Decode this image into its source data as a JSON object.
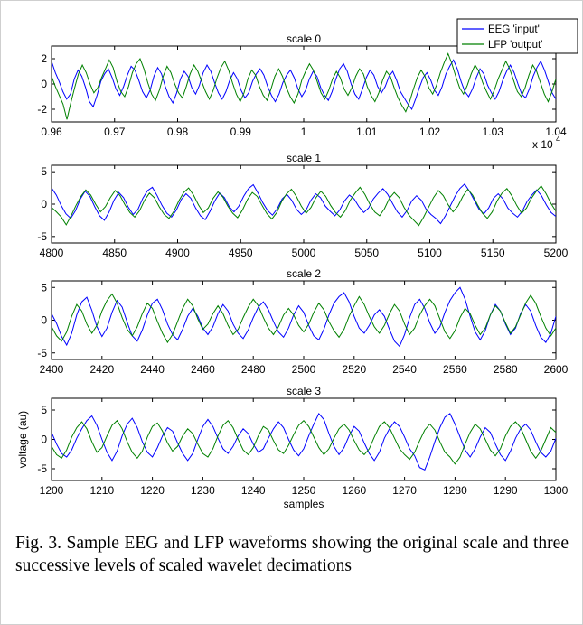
{
  "caption": "Fig. 3. Sample EEG and LFP waveforms showing the original scale and three successive levels of scaled wavelet decimations",
  "legend": {
    "placement": "top-right",
    "entries": [
      {
        "label": "EEG 'input'",
        "color": "#0000ff"
      },
      {
        "label": "LFP 'output'",
        "color": "#008000"
      }
    ]
  },
  "chart_data": [
    {
      "type": "line",
      "title": "scale 0",
      "xlabel": "",
      "ylabel": "",
      "xlim": [
        0.96,
        1.04
      ],
      "ylim": [
        -3,
        3
      ],
      "x_ticks": [
        0.96,
        0.97,
        0.98,
        0.99,
        1,
        1.01,
        1.02,
        1.03,
        1.04
      ],
      "x_tick_labels": [
        "0.96",
        "0.97",
        "0.98",
        "0.99",
        "1",
        "1.01",
        "1.02",
        "1.03",
        "1.04"
      ],
      "y_ticks": [
        -2,
        0,
        2
      ],
      "y_tick_labels": [
        "-2",
        "0",
        "2"
      ],
      "x_multiplier": "x 10",
      "x_multiplier_exp": "4",
      "series": [
        {
          "name": "EEG 'input'",
          "color": "#0000ff",
          "values": [
            1.8,
            0.9,
            0.2,
            -0.6,
            -1.2,
            -0.8,
            0.4,
            1.1,
            0.6,
            -0.3,
            -1.4,
            -1.8,
            -0.9,
            0.2,
            0.8,
            1.2,
            0.5,
            -0.4,
            -0.9,
            -0.2,
            0.7,
            1.4,
            1.1,
            0.3,
            -0.6,
            -1.1,
            -0.5,
            0.6,
            1.3,
            0.8,
            -0.2,
            -1.0,
            -1.5,
            -0.7,
            0.4,
            1.0,
            0.6,
            -0.3,
            -0.8,
            -0.1,
            0.9,
            1.5,
            1.0,
            0.1,
            -0.7,
            -1.2,
            -0.6,
            0.3,
            0.9,
            0.4,
            -0.5,
            -1.1,
            -0.7,
            0.2,
            0.8,
            1.2,
            0.7,
            -0.2,
            -0.9,
            -1.4,
            -0.8,
            0.1,
            0.7,
            1.1,
            0.5,
            -0.4,
            -1.0,
            -0.5,
            0.4,
            1.0,
            0.6,
            -0.3,
            -0.9,
            -1.3,
            -0.6,
            0.4,
            1.2,
            1.6,
            1.0,
            0.0,
            -0.8,
            -1.2,
            -0.4,
            0.5,
            1.1,
            0.7,
            -0.2,
            -0.7,
            -0.2,
            0.6,
            1.0,
            0.3,
            -0.6,
            -1.1,
            -1.6,
            -2.0,
            -1.2,
            -0.3,
            0.5,
            0.9,
            0.3,
            -0.5,
            -0.9,
            -0.2,
            0.8,
            1.4,
            1.9,
            1.2,
            0.2,
            -0.6,
            -1.0,
            -0.4,
            0.5,
            1.2,
            0.8,
            -0.1,
            -0.7,
            -1.2,
            -0.6,
            0.3,
            1.0,
            1.5,
            0.9,
            0.0,
            -0.8,
            -1.1,
            -0.4,
            0.6,
            1.3,
            1.8,
            1.1,
            0.2,
            -0.7,
            -1.2
          ]
        },
        {
          "name": "LFP 'output'",
          "color": "#008000",
          "values": [
            0.6,
            -0.2,
            -0.9,
            -1.6,
            -2.8,
            -1.5,
            -0.3,
            0.8,
            1.5,
            0.9,
            0.0,
            -0.7,
            -0.3,
            0.5,
            1.2,
            1.9,
            1.3,
            0.2,
            -0.6,
            -1.0,
            -0.2,
            0.9,
            1.6,
            2.0,
            1.2,
            0.1,
            -0.8,
            -1.3,
            -0.5,
            0.6,
            1.4,
            0.9,
            0.0,
            -0.7,
            -1.1,
            -0.2,
            0.8,
            1.5,
            1.0,
            0.2,
            -0.6,
            -1.2,
            -0.5,
            0.5,
            1.3,
            1.8,
            1.1,
            0.1,
            -0.8,
            -1.4,
            -0.7,
            0.4,
            1.1,
            0.7,
            -0.2,
            -0.9,
            -1.3,
            -0.4,
            0.6,
            1.2,
            0.6,
            -0.3,
            -1.0,
            -1.5,
            -0.8,
            0.3,
            1.0,
            1.6,
            1.1,
            0.2,
            -0.7,
            -1.2,
            -0.5,
            0.4,
            1.0,
            0.5,
            -0.4,
            -0.9,
            -0.3,
            0.6,
            1.2,
            0.8,
            -0.2,
            -0.9,
            -1.4,
            -0.7,
            0.3,
            1.0,
            0.6,
            -0.3,
            -1.1,
            -1.7,
            -2.2,
            -1.4,
            -0.4,
            0.5,
            1.1,
            0.6,
            -0.3,
            -0.8,
            -0.1,
            0.9,
            1.7,
            2.4,
            1.6,
            0.6,
            -0.3,
            -0.8,
            -0.1,
            0.8,
            1.5,
            1.0,
            0.1,
            -0.6,
            -1.2,
            -0.5,
            0.4,
            1.1,
            1.8,
            1.2,
            0.3,
            -0.6,
            -1.0,
            -0.3,
            0.7,
            1.5,
            1.0,
            0.1,
            -0.8,
            -1.4,
            -0.6,
            0.4
          ]
        }
      ]
    },
    {
      "type": "line",
      "title": "scale 1",
      "xlabel": "",
      "ylabel": "",
      "xlim": [
        4800,
        5200
      ],
      "ylim": [
        -6,
        6
      ],
      "x_ticks": [
        4800,
        4850,
        4900,
        4950,
        5000,
        5050,
        5100,
        5150,
        5200
      ],
      "x_tick_labels": [
        "4800",
        "4850",
        "4900",
        "4950",
        "5000",
        "5050",
        "5100",
        "5150",
        "5200"
      ],
      "y_ticks": [
        -5,
        0,
        5
      ],
      "y_tick_labels": [
        "-5",
        "0",
        "5"
      ],
      "series": [
        {
          "name": "EEG 'input'",
          "color": "#0000ff",
          "values": [
            2.5,
            1.4,
            -0.2,
            -1.5,
            -2.2,
            -1.0,
            0.8,
            2.0,
            1.2,
            -0.4,
            -1.8,
            -2.5,
            -1.2,
            0.6,
            1.8,
            1.0,
            -0.5,
            -1.6,
            -0.8,
            0.9,
            2.1,
            2.6,
            1.3,
            -0.2,
            -1.4,
            -2.0,
            -0.9,
            0.7,
            1.6,
            0.9,
            -0.6,
            -1.8,
            -2.4,
            -1.1,
            0.5,
            1.7,
            1.0,
            -0.4,
            -1.2,
            -0.3,
            1.2,
            2.4,
            3.0,
            1.7,
            0.2,
            -1.0,
            -1.7,
            -0.7,
            0.8,
            1.5,
            0.6,
            -0.8,
            -1.6,
            -0.9,
            0.6,
            1.6,
            1.0,
            -0.3,
            -1.1,
            -1.8,
            -0.9,
            0.5,
            1.4,
            0.8,
            -0.4,
            -1.3,
            -0.6,
            0.8,
            1.7,
            2.4,
            1.5,
            0.1,
            -1.2,
            -2.0,
            -1.0,
            0.5,
            1.3,
            0.6,
            -0.8,
            -1.6,
            -2.2,
            -3.0,
            -1.8,
            -0.3,
            1.2,
            2.4,
            3.1,
            2.0,
            0.6,
            -0.8,
            -1.5,
            -0.6,
            0.9,
            1.6,
            0.8,
            -0.6,
            -1.4,
            -2.0,
            -1.1,
            0.4,
            1.4,
            2.2,
            1.3,
            -0.1,
            -1.3,
            -1.9
          ]
        },
        {
          "name": "LFP 'output'",
          "color": "#008000",
          "values": [
            -0.5,
            -1.2,
            -2.0,
            -3.2,
            -1.8,
            -0.2,
            1.2,
            2.2,
            1.4,
            0.0,
            -1.2,
            -0.4,
            1.0,
            2.1,
            1.3,
            -0.1,
            -1.3,
            -2.0,
            -1.0,
            0.6,
            1.7,
            1.0,
            -0.4,
            -1.6,
            -2.2,
            -1.1,
            0.5,
            1.8,
            2.5,
            1.4,
            -0.1,
            -1.3,
            -0.6,
            0.9,
            1.9,
            1.1,
            -0.3,
            -1.4,
            -2.1,
            -0.9,
            0.7,
            1.8,
            1.2,
            -0.2,
            -1.5,
            -2.3,
            -1.3,
            0.4,
            1.6,
            2.3,
            1.2,
            -0.3,
            -1.4,
            -0.5,
            1.0,
            2.0,
            1.2,
            -0.2,
            -1.3,
            -2.0,
            -1.0,
            0.6,
            1.7,
            2.6,
            1.5,
            0.0,
            -1.2,
            -1.8,
            -0.7,
            0.9,
            1.8,
            1.0,
            -0.5,
            -1.7,
            -2.5,
            -3.3,
            -2.0,
            -0.5,
            1.0,
            2.1,
            1.3,
            -0.1,
            -1.2,
            -0.3,
            1.2,
            2.3,
            1.4,
            -0.1,
            -1.4,
            -2.2,
            -1.2,
            0.5,
            1.7,
            2.4,
            1.3,
            -0.2,
            -1.4,
            -0.6,
            0.9,
            2.0,
            2.8,
            1.6,
            0.1,
            -1.1
          ]
        }
      ]
    },
    {
      "type": "line",
      "title": "scale 2",
      "xlabel": "",
      "ylabel": "",
      "xlim": [
        2400,
        2600
      ],
      "ylim": [
        -6,
        6
      ],
      "x_ticks": [
        2400,
        2420,
        2440,
        2460,
        2480,
        2500,
        2520,
        2540,
        2560,
        2580,
        2600
      ],
      "x_tick_labels": [
        "2400",
        "2420",
        "2440",
        "2460",
        "2480",
        "2500",
        "2520",
        "2540",
        "2560",
        "2580",
        "2600"
      ],
      "y_ticks": [
        -5,
        0,
        5
      ],
      "y_tick_labels": [
        "-5",
        "0",
        "5"
      ],
      "series": [
        {
          "name": "EEG 'input'",
          "color": "#0000ff",
          "values": [
            1.0,
            -0.5,
            -2.5,
            -3.8,
            -2.0,
            0.8,
            2.8,
            3.5,
            1.5,
            -1.0,
            -2.5,
            -1.2,
            1.2,
            3.0,
            2.0,
            -0.3,
            -2.4,
            -3.2,
            -1.5,
            0.8,
            2.6,
            3.2,
            1.6,
            -0.6,
            -2.2,
            -3.0,
            -1.4,
            0.6,
            1.8,
            0.6,
            -1.2,
            -2.2,
            -1.0,
            1.0,
            2.4,
            1.4,
            -0.6,
            -2.0,
            -2.8,
            -1.5,
            0.4,
            2.0,
            2.8,
            1.6,
            -0.2,
            -1.8,
            -2.6,
            -1.2,
            0.8,
            2.2,
            1.2,
            -0.8,
            -2.4,
            -3.0,
            -1.4,
            0.8,
            2.6,
            3.6,
            4.2,
            2.8,
            0.6,
            -1.2,
            -2.0,
            -0.8,
            0.8,
            1.6,
            0.6,
            -1.4,
            -3.2,
            -4.0,
            -2.2,
            0.4,
            2.4,
            3.2,
            1.8,
            -0.4,
            -2.0,
            -1.0,
            1.2,
            3.0,
            4.2,
            5.0,
            3.2,
            0.6,
            -1.8,
            -3.0,
            -1.6,
            0.8,
            2.4,
            1.4,
            -0.6,
            -2.2,
            -1.2,
            1.0,
            2.4,
            1.4,
            -0.8,
            -2.6,
            -3.4,
            -2.0,
            0.6
          ]
        },
        {
          "name": "LFP 'output'",
          "color": "#008000",
          "values": [
            -1.0,
            -2.4,
            -3.2,
            -1.8,
            0.6,
            2.4,
            1.4,
            -0.6,
            -2.0,
            -0.8,
            1.4,
            3.0,
            4.0,
            2.6,
            0.4,
            -1.4,
            -2.4,
            -1.0,
            1.0,
            2.6,
            1.8,
            -0.2,
            -2.0,
            -3.4,
            -2.2,
            -0.2,
            1.8,
            3.2,
            2.2,
            0.2,
            -1.4,
            -0.6,
            1.0,
            2.2,
            1.0,
            -0.8,
            -2.2,
            -1.4,
            0.4,
            2.0,
            3.2,
            2.2,
            0.4,
            -1.2,
            -2.2,
            -1.0,
            0.8,
            1.8,
            0.8,
            -0.8,
            -1.8,
            -0.6,
            1.2,
            2.6,
            1.6,
            -0.2,
            -1.6,
            -2.6,
            -1.4,
            0.6,
            2.2,
            3.6,
            2.4,
            0.6,
            -1.0,
            -2.0,
            -0.8,
            1.0,
            2.4,
            1.4,
            -0.6,
            -2.2,
            -1.2,
            0.8,
            2.2,
            3.2,
            2.2,
            0.2,
            -1.8,
            -2.8,
            -1.6,
            0.4,
            1.8,
            1.0,
            -0.8,
            -2.2,
            -1.2,
            0.8,
            2.2,
            1.4,
            -0.4,
            -2.0,
            -1.0,
            0.8,
            2.6,
            3.8,
            2.6,
            0.6,
            -1.2,
            -2.4,
            -1.2
          ]
        }
      ]
    },
    {
      "type": "line",
      "title": "scale 3",
      "xlabel": "samples",
      "ylabel": "voltage (au)",
      "xlim": [
        1200,
        1300
      ],
      "ylim": [
        -7,
        7
      ],
      "x_ticks": [
        1200,
        1210,
        1220,
        1230,
        1240,
        1250,
        1260,
        1270,
        1280,
        1290,
        1300
      ],
      "x_tick_labels": [
        "1200",
        "1210",
        "1220",
        "1230",
        "1240",
        "1250",
        "1260",
        "1270",
        "1280",
        "1290",
        "1300"
      ],
      "y_ticks": [
        -5,
        0,
        5
      ],
      "y_tick_labels": [
        "-5",
        "0",
        "5"
      ],
      "series": [
        {
          "name": "EEG 'input'",
          "color": "#0000ff",
          "values": [
            1.2,
            -0.8,
            -2.4,
            -3.0,
            -1.8,
            0.2,
            1.8,
            3.2,
            4.0,
            2.4,
            0.0,
            -2.2,
            -3.6,
            -2.0,
            0.6,
            2.6,
            3.6,
            2.0,
            -0.4,
            -2.2,
            -3.0,
            -1.4,
            0.6,
            2.0,
            1.4,
            -0.6,
            -2.4,
            -3.6,
            -2.4,
            0.0,
            2.2,
            3.4,
            2.2,
            0.2,
            -1.6,
            -2.4,
            -1.2,
            0.6,
            1.8,
            1.0,
            -0.8,
            -2.2,
            -1.6,
            0.2,
            1.8,
            3.0,
            2.0,
            0.0,
            -1.8,
            -2.8,
            -1.6,
            0.6,
            2.6,
            4.4,
            3.4,
            1.0,
            -1.2,
            -2.6,
            -1.4,
            0.6,
            2.2,
            1.4,
            -0.6,
            -2.4,
            -3.6,
            -2.2,
            0.2,
            1.8,
            3.0,
            2.2,
            0.4,
            -1.6,
            -2.8,
            -4.8,
            -5.2,
            -3.0,
            -0.4,
            2.0,
            3.8,
            4.4,
            2.6,
            0.4,
            -1.8,
            -3.0,
            -1.6,
            0.4,
            2.0,
            1.2,
            -0.8,
            -2.6,
            -3.6,
            -2.0,
            0.2,
            1.8,
            2.6,
            1.6,
            -0.4,
            -2.2,
            -3.0,
            -2.0,
            0.2
          ]
        },
        {
          "name": "LFP 'output'",
          "color": "#008000",
          "values": [
            -1.2,
            -2.6,
            -3.2,
            -1.8,
            0.4,
            2.0,
            3.0,
            1.8,
            -0.4,
            -2.2,
            -1.4,
            0.6,
            2.4,
            3.2,
            1.8,
            -0.4,
            -2.2,
            -3.2,
            -2.0,
            0.4,
            2.2,
            2.8,
            1.4,
            -0.6,
            -2.0,
            -1.2,
            0.6,
            1.8,
            1.0,
            -0.8,
            -2.4,
            -3.0,
            -1.6,
            0.6,
            2.4,
            3.2,
            2.0,
            0.0,
            -1.8,
            -2.6,
            -1.4,
            0.6,
            2.2,
            1.6,
            -0.2,
            -1.8,
            -2.4,
            -1.0,
            0.8,
            2.4,
            3.2,
            2.2,
            0.4,
            -1.4,
            -2.6,
            -1.6,
            0.2,
            1.8,
            2.6,
            1.6,
            -0.2,
            -1.8,
            -2.6,
            -1.6,
            0.4,
            2.2,
            3.0,
            2.0,
            0.2,
            -1.6,
            -2.6,
            -3.4,
            -2.2,
            -0.2,
            1.6,
            2.6,
            1.6,
            -0.4,
            -2.2,
            -3.0,
            -4.2,
            -3.0,
            -0.8,
            1.2,
            2.6,
            1.8,
            0.0,
            -1.8,
            -2.8,
            -1.6,
            0.6,
            2.2,
            3.0,
            2.0,
            0.0,
            -2.0,
            -3.2,
            -2.0,
            0.0,
            2.0,
            1.2
          ]
        }
      ]
    }
  ]
}
